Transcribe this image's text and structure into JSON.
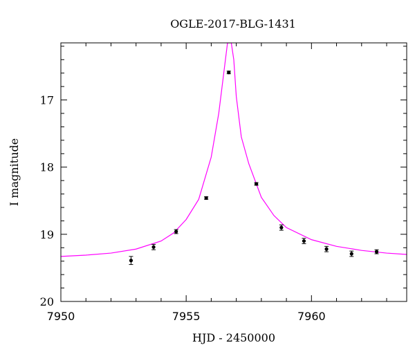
{
  "chart_data": {
    "type": "scatter",
    "title": "OGLE-2017-BLG-1431",
    "xlabel": "HJD - 2450000",
    "ylabel": "I magnitude",
    "xlim": [
      7950,
      7963.8
    ],
    "ylim": [
      20.0,
      16.15
    ],
    "y_inverted": true,
    "x_ticks": [
      7950,
      7955,
      7960
    ],
    "y_ticks": [
      17,
      18,
      19,
      20
    ],
    "points": [
      {
        "x": 7952.8,
        "y": 19.39,
        "err": 0.06
      },
      {
        "x": 7953.7,
        "y": 19.19,
        "err": 0.04
      },
      {
        "x": 7954.6,
        "y": 18.96,
        "err": 0.03
      },
      {
        "x": 7955.8,
        "y": 18.46,
        "err": 0.02
      },
      {
        "x": 7956.7,
        "y": 16.59,
        "err": 0.02
      },
      {
        "x": 7957.8,
        "y": 18.25,
        "err": 0.02
      },
      {
        "x": 7958.8,
        "y": 18.9,
        "err": 0.04
      },
      {
        "x": 7959.7,
        "y": 19.1,
        "err": 0.04
      },
      {
        "x": 7960.6,
        "y": 19.22,
        "err": 0.04
      },
      {
        "x": 7961.6,
        "y": 19.29,
        "err": 0.04
      },
      {
        "x": 7962.6,
        "y": 19.26,
        "err": 0.03
      }
    ],
    "model_curve": {
      "color": "#ff00ff",
      "x": [
        7950,
        7951,
        7952,
        7953,
        7954,
        7954.5,
        7955,
        7955.5,
        7956,
        7956.3,
        7956.5,
        7956.65,
        7956.8,
        7956.9,
        7957.0,
        7957.2,
        7957.5,
        7958,
        7958.5,
        7959,
        7960,
        7961,
        7962,
        7963,
        7963.8
      ],
      "y": [
        19.33,
        19.31,
        19.28,
        19.22,
        19.1,
        18.98,
        18.78,
        18.48,
        17.85,
        17.2,
        16.6,
        16.15,
        16.15,
        16.4,
        16.95,
        17.55,
        17.95,
        18.45,
        18.72,
        18.9,
        19.08,
        19.18,
        19.24,
        19.28,
        19.3
      ]
    },
    "colors": {
      "points": "#000000",
      "curve": "#ff00ff",
      "axes": "#000000"
    },
    "grid": false,
    "legend": "none"
  }
}
